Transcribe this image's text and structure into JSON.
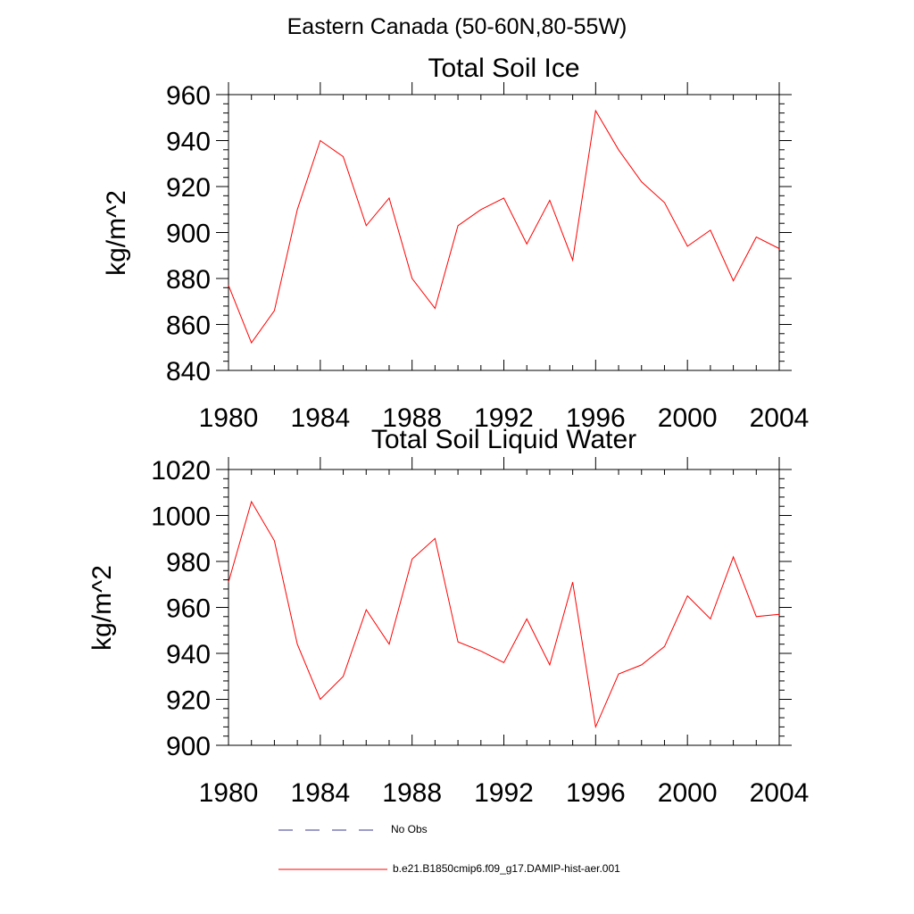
{
  "figure": {
    "title": "Eastern Canada (50-60N,80-55W)"
  },
  "chart_data": [
    {
      "type": "line",
      "title": "Total Soil Ice",
      "xlabel": "",
      "ylabel": "kg/m^2",
      "xlim": [
        1980,
        2004
      ],
      "ylim": [
        840,
        960
      ],
      "x_ticks": [
        1980,
        1984,
        1988,
        1992,
        1996,
        2000,
        2004
      ],
      "y_ticks": [
        840,
        860,
        880,
        900,
        920,
        940,
        960
      ],
      "x_minor_step": 1,
      "y_minor_step": 4,
      "grid": false,
      "x": [
        1980,
        1981,
        1982,
        1983,
        1984,
        1985,
        1986,
        1987,
        1988,
        1989,
        1990,
        1991,
        1992,
        1993,
        1994,
        1995,
        1996,
        1997,
        1998,
        1999,
        2000,
        2001,
        2002,
        2003,
        2004
      ],
      "series": [
        {
          "name": "b.e21.B1850cmip6.f09_g17.DAMIP-hist-aer.001",
          "color": "#ff0000",
          "values": [
            877,
            852,
            866,
            910,
            940,
            933,
            903,
            915,
            880,
            867,
            903,
            910,
            915,
            895,
            914,
            888,
            953,
            936,
            922,
            913,
            894,
            901,
            879,
            898,
            893
          ]
        }
      ]
    },
    {
      "type": "line",
      "title": "Total Soil Liquid Water",
      "xlabel": "",
      "ylabel": "kg/m^2",
      "xlim": [
        1980,
        2004
      ],
      "ylim": [
        900,
        1020
      ],
      "x_ticks": [
        1980,
        1984,
        1988,
        1992,
        1996,
        2000,
        2004
      ],
      "y_ticks": [
        900,
        920,
        940,
        960,
        980,
        1000,
        1020
      ],
      "x_minor_step": 1,
      "y_minor_step": 4,
      "grid": false,
      "x": [
        1980,
        1981,
        1982,
        1983,
        1984,
        1985,
        1986,
        1987,
        1988,
        1989,
        1990,
        1991,
        1992,
        1993,
        1994,
        1995,
        1996,
        1997,
        1998,
        1999,
        2000,
        2001,
        2002,
        2003,
        2004
      ],
      "series": [
        {
          "name": "b.e21.B1850cmip6.f09_g17.DAMIP-hist-aer.001",
          "color": "#ff0000",
          "values": [
            971,
            1006,
            989,
            944,
            920,
            930,
            959,
            944,
            981,
            990,
            945,
            941,
            936,
            955,
            935,
            971,
            908,
            931,
            935,
            943,
            965,
            955,
            982,
            956,
            957
          ]
        }
      ]
    }
  ],
  "legend": {
    "placement": "bottom",
    "entries": [
      {
        "label": "No Obs",
        "style": "dashed",
        "color": "#3a3a8c"
      },
      {
        "label": "b.e21.B1850cmip6.f09_g17.DAMIP-hist-aer.001",
        "style": "solid",
        "color": "#ff0000"
      }
    ]
  }
}
